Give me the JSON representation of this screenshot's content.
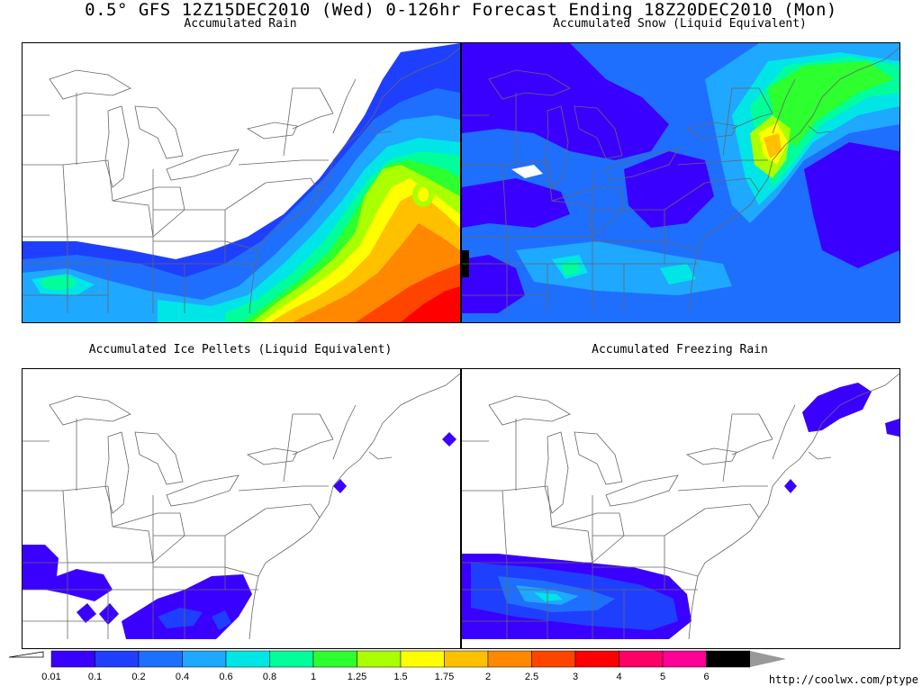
{
  "title": "0.5° GFS 12Z15DEC2010 (Wed) 0-126hr Forecast Ending 18Z20DEC2010 (Mon)",
  "panels": [
    {
      "id": "rain",
      "title": "Accumulated Rain"
    },
    {
      "id": "snow",
      "title": "Accumulated Snow (Liquid Equivalent)"
    },
    {
      "id": "ice",
      "title": "Accumulated Ice Pellets (Liquid Equivalent)"
    },
    {
      "id": "frz",
      "title": "Accumulated Freezing Rain"
    }
  ],
  "legend": {
    "labels": [
      "0.01",
      "0.1",
      "0.2",
      "0.4",
      "0.6",
      "0.8",
      "1",
      "1.25",
      "1.5",
      "1.75",
      "2",
      "2.5",
      "3",
      "4",
      "5",
      "6"
    ],
    "colors": [
      "#3a00ff",
      "#1f3fff",
      "#1f6fff",
      "#1fa8ff",
      "#00e6e6",
      "#00ff9a",
      "#2eff2e",
      "#aaff00",
      "#ffff00",
      "#ffc000",
      "#ff8800",
      "#ff4400",
      "#ff0000",
      "#ff0066",
      "#ff0099",
      "#000000",
      "#999999"
    ]
  },
  "credit": "http://coolwx.com/ptype"
}
